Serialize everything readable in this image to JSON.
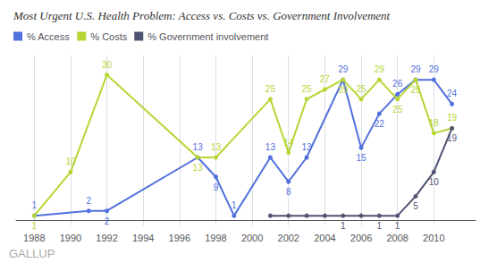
{
  "chart_data": {
    "type": "line",
    "title": "Most Urgent U.S. Health Problem: Access vs. Costs vs. Government Involvement",
    "series": [
      {
        "name": "% Access",
        "x": [
          1988,
          1991,
          1992,
          1997,
          1998,
          1999,
          2001,
          2002,
          2003,
          2005,
          2006,
          2007,
          2008,
          2009,
          2010,
          2011
        ],
        "values": [
          1,
          2,
          2,
          13,
          9,
          1,
          13,
          8,
          13,
          29,
          15,
          22,
          26,
          29,
          29,
          24
        ]
      },
      {
        "name": "% Costs",
        "x": [
          1988,
          1990,
          1992,
          1997,
          1998,
          2001,
          2002,
          2003,
          2004,
          2005,
          2006,
          2007,
          2008,
          2009,
          2010,
          2011
        ],
        "values": [
          1,
          10,
          30,
          13,
          13,
          25,
          14,
          25,
          27,
          29,
          25,
          29,
          25,
          29,
          18,
          19
        ]
      },
      {
        "name": "% Government involvement",
        "x": [
          2001,
          2002,
          2003,
          2004,
          2005,
          2006,
          2007,
          2008,
          2009,
          2010,
          2011
        ],
        "values": [
          1,
          1,
          1,
          1,
          1,
          1,
          1,
          1,
          5,
          10,
          19
        ],
        "value_labels": [
          null,
          null,
          null,
          null,
          "1",
          null,
          "1",
          "1",
          "5",
          "10",
          "19"
        ]
      }
    ],
    "xlim": [
      1987.0,
      2012.3
    ],
    "ylim": [
      -1,
      34
    ],
    "xticks": [
      1988,
      1990,
      1992,
      1994,
      1996,
      1998,
      2000,
      2002,
      2004,
      2006,
      2008,
      2010
    ],
    "grid": "x",
    "tick_labels": "x",
    "data_labels": true,
    "marker": "circle",
    "legend": "top left",
    "annotations": [
      "GALLUP"
    ]
  }
}
